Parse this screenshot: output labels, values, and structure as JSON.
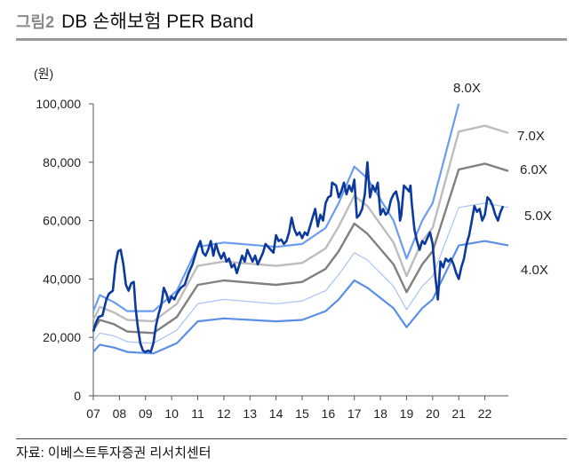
{
  "header": {
    "label": "그림2",
    "title": "DB 손해보험 PER Band"
  },
  "source": "자료: 이베스트투자증권 리서치센터",
  "chart_data": {
    "type": "line",
    "title": "DB 손해보험 PER Band",
    "ylabel": "(원)",
    "xlabel": "",
    "ylim": [
      0,
      100000
    ],
    "xlim": [
      7.0,
      22.9
    ],
    "y_ticks": [
      0,
      20000,
      40000,
      60000,
      80000,
      100000
    ],
    "y_tick_labels": [
      "0",
      "20,000",
      "40,000",
      "60,000",
      "80,000",
      "100,000"
    ],
    "x_ticks": [
      7,
      8,
      9,
      10,
      11,
      12,
      13,
      14,
      15,
      16,
      17,
      18,
      19,
      20,
      21,
      22
    ],
    "x_tick_labels": [
      "07",
      "08",
      "09",
      "10",
      "11",
      "12",
      "13",
      "14",
      "15",
      "16",
      "17",
      "18",
      "19",
      "20",
      "21",
      "22"
    ],
    "grid": false,
    "colors": {
      "price": "#0b3a9c",
      "band_8x": "#6b9cf0",
      "band_7x": "#bdbdbd",
      "band_6x": "#808080",
      "band_5x": "#a9c4f2",
      "band_4x": "#5b8fe6"
    },
    "series": [
      {
        "key": "price",
        "values": [
          [
            7.0,
            22000
          ],
          [
            7.1,
            25000
          ],
          [
            7.2,
            27000
          ],
          [
            7.35,
            27500
          ],
          [
            7.5,
            33000
          ],
          [
            7.6,
            35000
          ],
          [
            7.75,
            36000
          ],
          [
            7.85,
            45000
          ],
          [
            7.95,
            49500
          ],
          [
            8.05,
            50000
          ],
          [
            8.15,
            45000
          ],
          [
            8.25,
            38000
          ],
          [
            8.35,
            36000
          ],
          [
            8.45,
            38500
          ],
          [
            8.55,
            39000
          ],
          [
            8.62,
            30000
          ],
          [
            8.7,
            24000
          ],
          [
            8.8,
            18000
          ],
          [
            8.9,
            15500
          ],
          [
            9.0,
            15000
          ],
          [
            9.1,
            15500
          ],
          [
            9.2,
            15000
          ],
          [
            9.3,
            18000
          ],
          [
            9.4,
            24000
          ],
          [
            9.5,
            28000
          ],
          [
            9.6,
            31000
          ],
          [
            9.7,
            37000
          ],
          [
            9.8,
            35000
          ],
          [
            9.9,
            32000
          ],
          [
            10.0,
            34000
          ],
          [
            10.1,
            33000
          ],
          [
            10.2,
            35000
          ],
          [
            10.35,
            37000
          ],
          [
            10.5,
            38000
          ],
          [
            10.65,
            42000
          ],
          [
            10.8,
            45000
          ],
          [
            10.9,
            48000
          ],
          [
            11.0,
            51000
          ],
          [
            11.1,
            53000
          ],
          [
            11.2,
            49000
          ],
          [
            11.3,
            48000
          ],
          [
            11.4,
            50000
          ],
          [
            11.5,
            53000
          ],
          [
            11.6,
            48000
          ],
          [
            11.7,
            52000
          ],
          [
            11.8,
            49000
          ],
          [
            11.9,
            47000
          ],
          [
            12.0,
            49000
          ],
          [
            12.1,
            46000
          ],
          [
            12.2,
            47000
          ],
          [
            12.3,
            44000
          ],
          [
            12.4,
            45000
          ],
          [
            12.5,
            42000
          ],
          [
            12.6,
            45000
          ],
          [
            12.7,
            48000
          ],
          [
            12.8,
            46000
          ],
          [
            12.9,
            50000
          ],
          [
            13.0,
            48000
          ],
          [
            13.1,
            46000
          ],
          [
            13.2,
            48000
          ],
          [
            13.3,
            45000
          ],
          [
            13.4,
            47000
          ],
          [
            13.5,
            49000
          ],
          [
            13.6,
            52000
          ],
          [
            13.7,
            51000
          ],
          [
            13.8,
            50000
          ],
          [
            13.9,
            49000
          ],
          [
            14.0,
            55000
          ],
          [
            14.1,
            53000
          ],
          [
            14.2,
            53500
          ],
          [
            14.3,
            52000
          ],
          [
            14.4,
            53000
          ],
          [
            14.5,
            56000
          ],
          [
            14.6,
            61000
          ],
          [
            14.7,
            57000
          ],
          [
            14.8,
            55000
          ],
          [
            14.9,
            56000
          ],
          [
            15.0,
            54000
          ],
          [
            15.1,
            56000
          ],
          [
            15.2,
            55000
          ],
          [
            15.3,
            58000
          ],
          [
            15.4,
            61000
          ],
          [
            15.5,
            64000
          ],
          [
            15.6,
            58000
          ],
          [
            15.7,
            62000
          ],
          [
            15.8,
            60000
          ],
          [
            15.9,
            66000
          ],
          [
            16.0,
            68000
          ],
          [
            16.1,
            68500
          ],
          [
            16.15,
            73000
          ],
          [
            16.3,
            72000
          ],
          [
            16.4,
            68000
          ],
          [
            16.5,
            70000
          ],
          [
            16.6,
            73000
          ],
          [
            16.7,
            69000
          ],
          [
            16.8,
            72000
          ],
          [
            16.9,
            70000
          ],
          [
            17.0,
            74000
          ],
          [
            17.1,
            61000
          ],
          [
            17.2,
            62000
          ],
          [
            17.3,
            64000
          ],
          [
            17.4,
            69000
          ],
          [
            17.5,
            80000
          ],
          [
            17.6,
            68000
          ],
          [
            17.7,
            72000
          ],
          [
            17.8,
            70000
          ],
          [
            17.9,
            73000
          ],
          [
            18.0,
            62000
          ],
          [
            18.1,
            64000
          ],
          [
            18.2,
            62000
          ],
          [
            18.3,
            63000
          ],
          [
            18.4,
            67000
          ],
          [
            18.5,
            69000
          ],
          [
            18.6,
            70000
          ],
          [
            18.7,
            66000
          ],
          [
            18.75,
            60000
          ],
          [
            18.8,
            62000
          ],
          [
            18.85,
            67000
          ],
          [
            18.9,
            72000
          ],
          [
            19.0,
            71000
          ],
          [
            19.1,
            70000
          ],
          [
            19.15,
            72000
          ],
          [
            19.2,
            66000
          ],
          [
            19.3,
            57000
          ],
          [
            19.4,
            53000
          ],
          [
            19.5,
            50000
          ],
          [
            19.6,
            53000
          ],
          [
            19.7,
            52000
          ],
          [
            19.8,
            54000
          ],
          [
            19.9,
            56000
          ],
          [
            20.0,
            52000
          ],
          [
            20.1,
            41000
          ],
          [
            20.2,
            33000
          ],
          [
            20.3,
            46000
          ],
          [
            20.4,
            44000
          ],
          [
            20.5,
            47000
          ],
          [
            20.6,
            46000
          ],
          [
            20.7,
            47000
          ],
          [
            20.8,
            45000
          ],
          [
            20.9,
            42000
          ],
          [
            21.0,
            40000
          ],
          [
            21.1,
            44000
          ],
          [
            21.2,
            47000
          ],
          [
            21.3,
            52000
          ],
          [
            21.4,
            55000
          ],
          [
            21.5,
            60000
          ],
          [
            21.6,
            65000
          ],
          [
            21.7,
            63000
          ],
          [
            21.8,
            64000
          ],
          [
            21.9,
            60000
          ],
          [
            22.0,
            62000
          ],
          [
            22.1,
            68000
          ],
          [
            22.2,
            67000
          ],
          [
            22.3,
            65000
          ],
          [
            22.4,
            62000
          ],
          [
            22.5,
            60000
          ],
          [
            22.6,
            63000
          ],
          [
            22.7,
            65000
          ]
        ]
      },
      {
        "key": "band_8x",
        "name": "8.0X",
        "values": [
          [
            7.0,
            29000
          ],
          [
            7.25,
            34500
          ],
          [
            7.8,
            32000
          ],
          [
            8.3,
            29000
          ],
          [
            9.3,
            29000
          ],
          [
            10.2,
            36000
          ],
          [
            11.0,
            51000
          ],
          [
            12.0,
            52500
          ],
          [
            14.0,
            51000
          ],
          [
            15.0,
            52000
          ],
          [
            15.9,
            57500
          ],
          [
            16.4,
            66000
          ],
          [
            17.0,
            78500
          ],
          [
            17.5,
            74500
          ],
          [
            18.5,
            60000
          ],
          [
            19.0,
            47000
          ],
          [
            19.6,
            60000
          ],
          [
            20.0,
            66000
          ],
          [
            21.0,
            100000
          ]
        ]
      },
      {
        "key": "band_7x",
        "name": "7.0X",
        "values": [
          [
            7.0,
            26000
          ],
          [
            7.25,
            30500
          ],
          [
            7.8,
            28500
          ],
          [
            8.3,
            26000
          ],
          [
            9.3,
            25500
          ],
          [
            10.2,
            31500
          ],
          [
            11.0,
            44500
          ],
          [
            12.0,
            46000
          ],
          [
            14.0,
            44500
          ],
          [
            15.0,
            45500
          ],
          [
            15.9,
            50500
          ],
          [
            16.4,
            58000
          ],
          [
            17.0,
            68500
          ],
          [
            17.5,
            65000
          ],
          [
            18.5,
            52500
          ],
          [
            19.0,
            41000
          ],
          [
            19.6,
            53000
          ],
          [
            20.0,
            57500
          ],
          [
            21.0,
            90500
          ],
          [
            22.0,
            92500
          ],
          [
            22.9,
            90000
          ]
        ]
      },
      {
        "key": "band_6x",
        "name": "6.0X",
        "values": [
          [
            7.0,
            22500
          ],
          [
            7.25,
            26000
          ],
          [
            7.8,
            24500
          ],
          [
            8.3,
            22000
          ],
          [
            9.3,
            21500
          ],
          [
            10.2,
            27000
          ],
          [
            11.0,
            38000
          ],
          [
            12.0,
            39500
          ],
          [
            14.0,
            38000
          ],
          [
            15.0,
            39000
          ],
          [
            15.9,
            43500
          ],
          [
            16.4,
            49500
          ],
          [
            17.0,
            59000
          ],
          [
            17.5,
            55500
          ],
          [
            18.5,
            45000
          ],
          [
            19.0,
            35500
          ],
          [
            19.6,
            45000
          ],
          [
            20.0,
            49500
          ],
          [
            21.0,
            77500
          ],
          [
            22.0,
            79500
          ],
          [
            22.9,
            77000
          ]
        ]
      },
      {
        "key": "band_5x",
        "name": "5.0X",
        "values": [
          [
            7.0,
            18500
          ],
          [
            7.25,
            21500
          ],
          [
            7.8,
            20500
          ],
          [
            8.3,
            18500
          ],
          [
            9.3,
            18000
          ],
          [
            10.2,
            22500
          ],
          [
            11.0,
            31500
          ],
          [
            12.0,
            33000
          ],
          [
            14.0,
            31500
          ],
          [
            15.0,
            32500
          ],
          [
            15.9,
            36000
          ],
          [
            16.4,
            41500
          ],
          [
            17.0,
            49000
          ],
          [
            17.5,
            46500
          ],
          [
            18.5,
            37500
          ],
          [
            19.0,
            29500
          ],
          [
            19.6,
            37500
          ],
          [
            20.0,
            41000
          ],
          [
            21.0,
            64500
          ],
          [
            22.0,
            66000
          ],
          [
            22.9,
            64500
          ]
        ]
      },
      {
        "key": "band_4x",
        "name": "4.0X",
        "values": [
          [
            7.0,
            15000
          ],
          [
            7.25,
            17500
          ],
          [
            7.8,
            16500
          ],
          [
            8.3,
            15000
          ],
          [
            9.3,
            14500
          ],
          [
            10.2,
            18000
          ],
          [
            11.0,
            25500
          ],
          [
            12.0,
            26500
          ],
          [
            14.0,
            25500
          ],
          [
            15.0,
            26000
          ],
          [
            15.9,
            29000
          ],
          [
            16.4,
            33000
          ],
          [
            17.0,
            39500
          ],
          [
            17.5,
            37000
          ],
          [
            18.5,
            30000
          ],
          [
            19.0,
            23500
          ],
          [
            19.6,
            30000
          ],
          [
            20.0,
            33000
          ],
          [
            21.0,
            51500
          ],
          [
            22.0,
            53000
          ],
          [
            22.9,
            51500
          ]
        ]
      }
    ]
  }
}
